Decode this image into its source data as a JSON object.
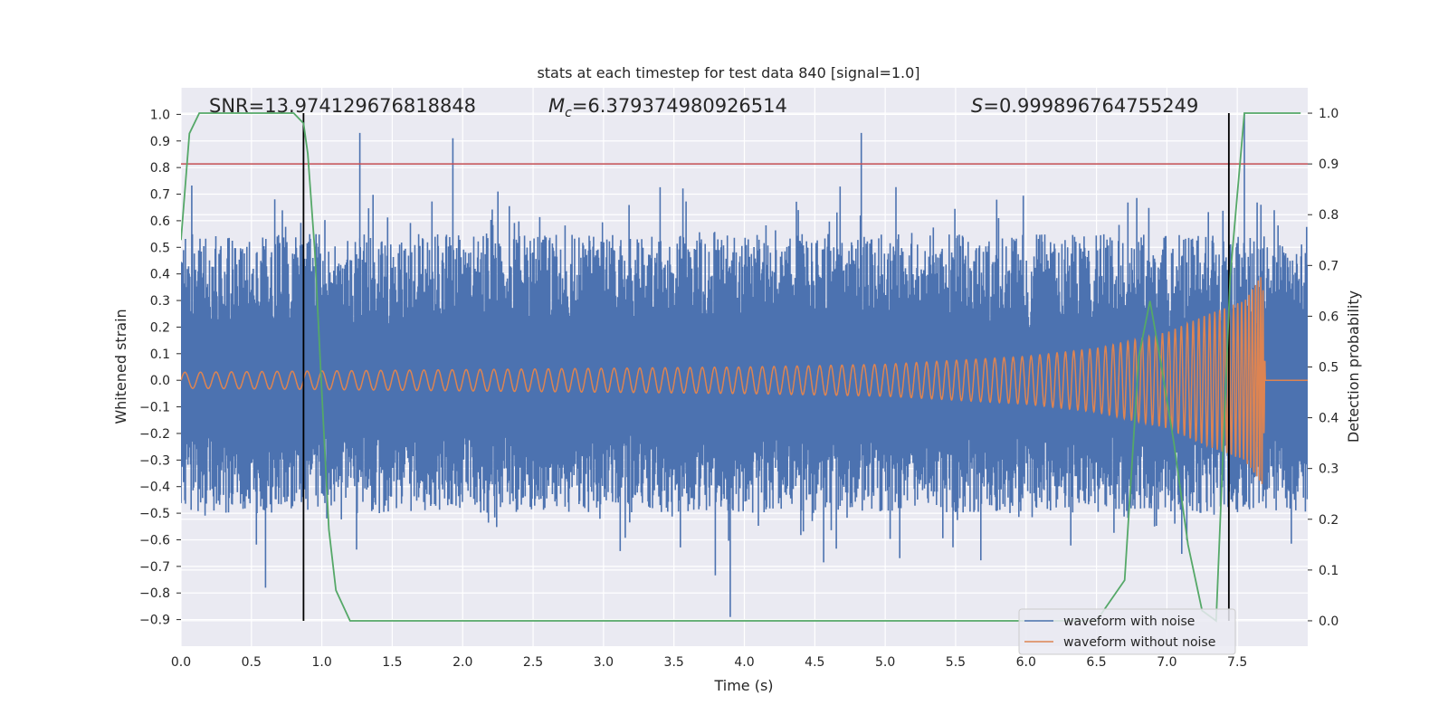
{
  "chart_data": {
    "type": "line",
    "title": "stats at each timestep for test data 840 [signal=1.0]",
    "xlabel": "Time (s)",
    "ylabel": "Whitened strain",
    "y2label": "Detection probability",
    "xlim": [
      0.0,
      8.0
    ],
    "ylim": [
      -1.0,
      1.1
    ],
    "y2lim": [
      -0.05,
      1.05
    ],
    "xticks": [
      "0.0",
      "0.5",
      "1.0",
      "1.5",
      "2.0",
      "2.5",
      "3.0",
      "3.5",
      "4.0",
      "4.5",
      "5.0",
      "5.5",
      "6.0",
      "6.5",
      "7.0",
      "7.5"
    ],
    "yticks": [
      "−0.9",
      "−0.8",
      "−0.7",
      "−0.6",
      "−0.5",
      "−0.4",
      "−0.3",
      "−0.2",
      "−0.1",
      "0.0",
      "0.1",
      "0.2",
      "0.3",
      "0.4",
      "0.5",
      "0.6",
      "0.7",
      "0.8",
      "0.9",
      "1.0"
    ],
    "y2ticks": [
      "0.0",
      "0.1",
      "0.2",
      "0.3",
      "0.4",
      "0.5",
      "0.6",
      "0.7",
      "0.8",
      "0.9",
      "1.0"
    ],
    "grid": true,
    "legend_position": "lower-right",
    "annotations": {
      "snr": "SNR=13.974129676818848",
      "mc_symbol": "M",
      "mc_subscript": "c",
      "mc_value": "=6.379374980926514",
      "s_symbol": "S",
      "s_value": "=0.999896764755249"
    },
    "series": [
      {
        "name": "waveform with noise",
        "color": "#4c72b0",
        "axis": "left",
        "approx_band": [
          -0.5,
          0.55
        ],
        "peaks": [
          [
            1.27,
            0.93
          ],
          [
            1.93,
            0.91
          ],
          [
            3.9,
            -0.89
          ],
          [
            4.83,
            0.93
          ],
          [
            7.55,
            1.0
          ],
          [
            0.6,
            -0.78
          ],
          [
            2.25,
            0.71
          ]
        ]
      },
      {
        "name": "waveform without noise",
        "color": "#dd8452",
        "axis": "left",
        "envelope": [
          [
            0.0,
            0.03
          ],
          [
            2.0,
            0.04
          ],
          [
            4.0,
            0.05
          ],
          [
            5.0,
            0.06
          ],
          [
            6.0,
            0.09
          ],
          [
            6.5,
            0.12
          ],
          [
            7.0,
            0.18
          ],
          [
            7.3,
            0.25
          ],
          [
            7.55,
            0.3
          ],
          [
            7.68,
            0.4
          ],
          [
            7.7,
            0.0
          ],
          [
            8.0,
            0.0
          ]
        ]
      },
      {
        "name": "detection probability",
        "color": "#55a868",
        "axis": "right",
        "x": [
          0.0,
          0.06,
          0.13,
          0.3,
          0.5,
          0.8,
          0.87,
          0.9,
          0.95,
          1.0,
          1.05,
          1.1,
          1.2,
          2.0,
          3.0,
          4.0,
          5.0,
          5.6,
          6.0,
          6.5,
          6.7,
          6.8,
          6.88,
          6.95,
          7.05,
          7.15,
          7.25,
          7.35,
          7.45,
          7.55,
          7.6,
          7.95
        ],
        "y": [
          0.75,
          0.96,
          1.0,
          1.0,
          1.0,
          1.0,
          0.98,
          0.92,
          0.73,
          0.45,
          0.18,
          0.06,
          0.0,
          0.0,
          0.0,
          0.0,
          0.0,
          0.0,
          0.0,
          0.0,
          0.08,
          0.52,
          0.63,
          0.52,
          0.35,
          0.15,
          0.02,
          0.0,
          0.68,
          1.0,
          1.0,
          1.0
        ]
      }
    ],
    "threshold_line": {
      "color": "#c44e52",
      "y2": 0.9
    },
    "vertical_lines": [
      {
        "x": 0.87,
        "color": "#000000"
      },
      {
        "x": 7.44,
        "color": "#000000"
      }
    ]
  }
}
